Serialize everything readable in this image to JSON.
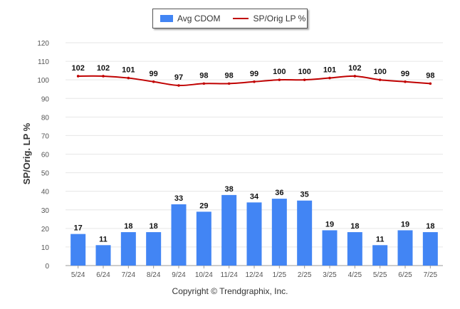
{
  "legend": {
    "bar_label": "Avg CDOM",
    "line_label": "SP/Orig LP %"
  },
  "footer": {
    "copyright": "Copyright © Trendgraphix, Inc."
  },
  "colors": {
    "bar": "#4285f4",
    "line": "#c00000",
    "grid": "#e6e6e6"
  },
  "chart_data": {
    "type": "bar",
    "categories": [
      "5/24",
      "6/24",
      "7/24",
      "8/24",
      "9/24",
      "10/24",
      "11/24",
      "12/24",
      "1/25",
      "2/25",
      "3/25",
      "4/25",
      "5/25",
      "6/25",
      "7/25"
    ],
    "series": [
      {
        "name": "Avg CDOM",
        "type": "bar",
        "values": [
          17,
          11,
          18,
          18,
          33,
          29,
          38,
          34,
          36,
          35,
          19,
          18,
          11,
          19,
          18
        ]
      },
      {
        "name": "SP/Orig LP %",
        "type": "line",
        "values": [
          102,
          102,
          101,
          99,
          97,
          98,
          98,
          99,
          100,
          100,
          101,
          102,
          100,
          99,
          98
        ]
      }
    ],
    "ylabel": "SP/Orig. LP %",
    "ylim": [
      0,
      120
    ],
    "yticks": [
      0,
      10,
      20,
      30,
      40,
      50,
      60,
      70,
      80,
      90,
      100,
      110,
      120
    ],
    "grid": true,
    "legend_position": "top-center"
  }
}
